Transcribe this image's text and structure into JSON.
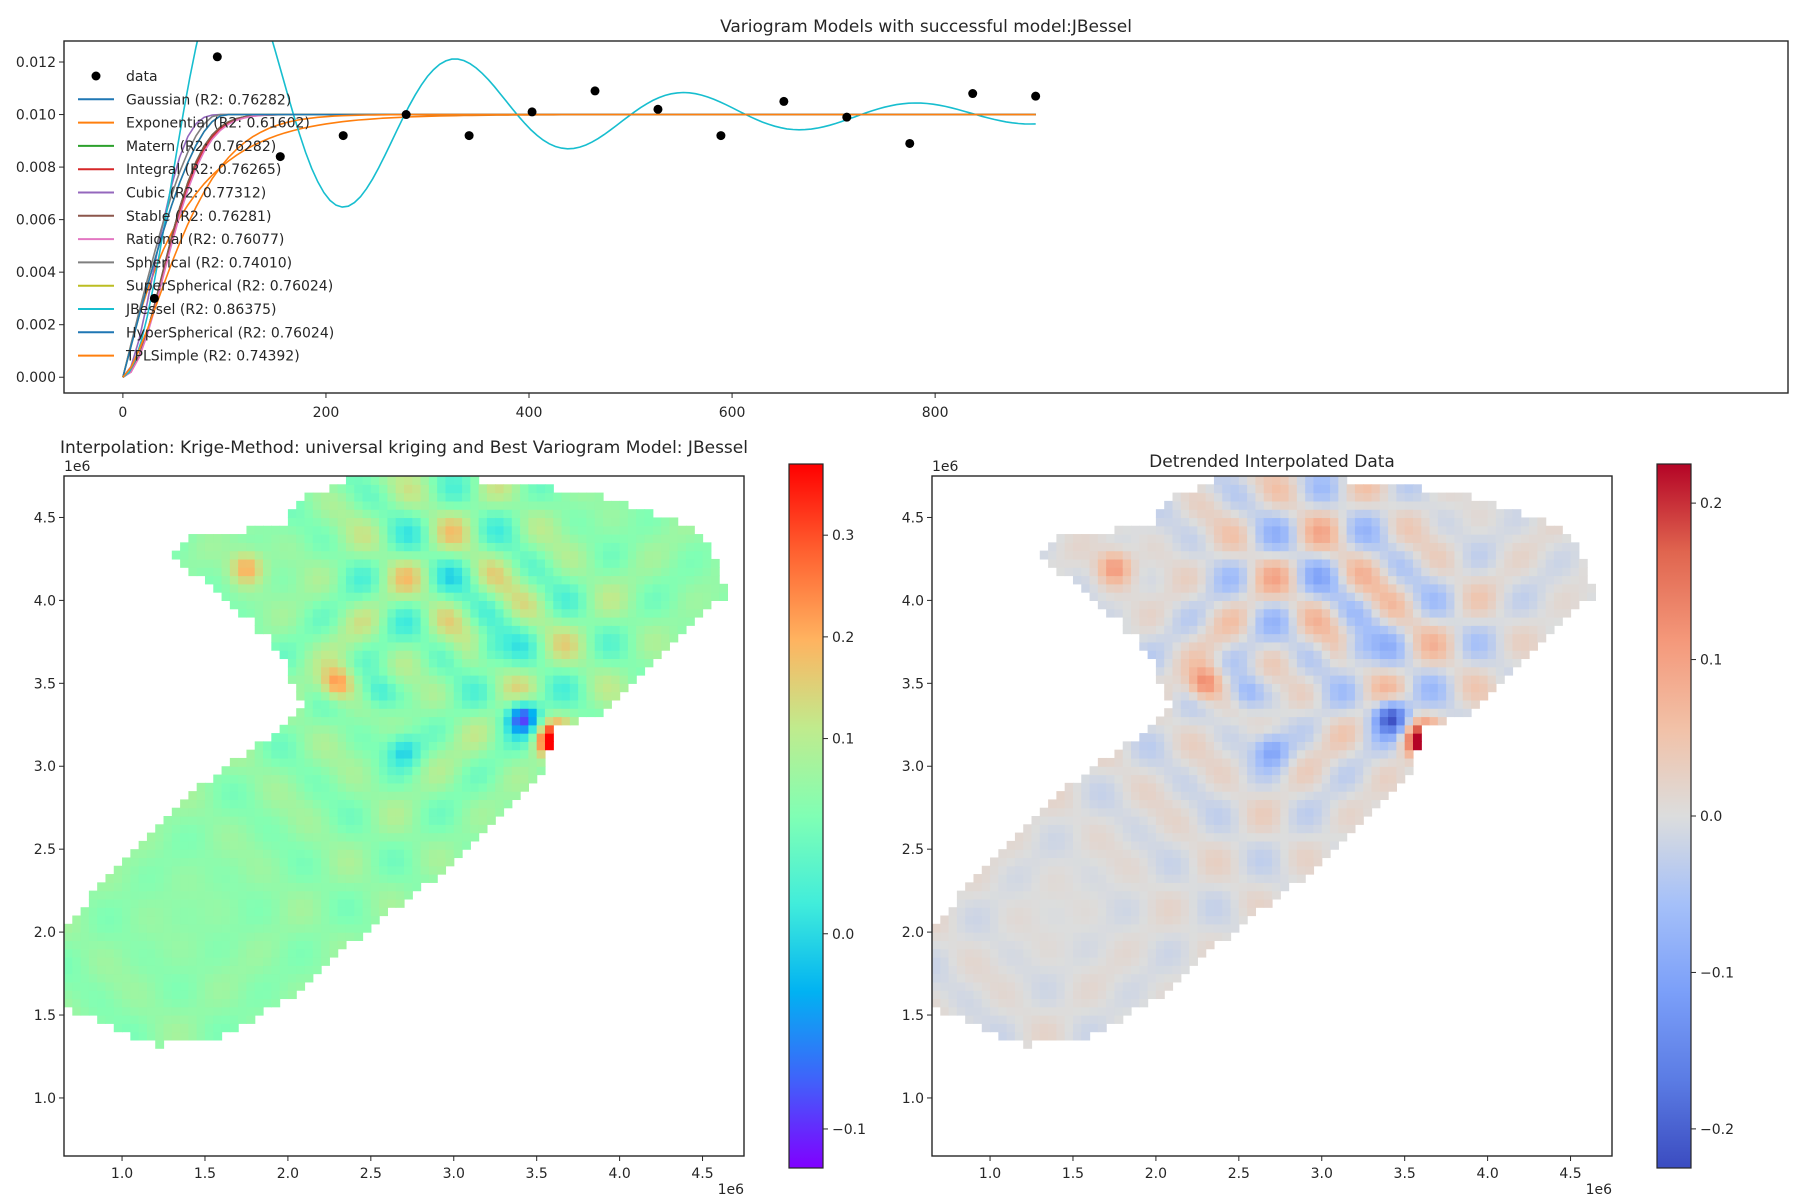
{
  "chart_data": [
    {
      "type": "scatter+line",
      "title": "Variogram Models with successful model:JBessel",
      "xlim": [
        -58,
        1640
      ],
      "ylim": [
        -0.0006,
        0.0128
      ],
      "xticks": [
        0,
        200,
        400,
        600,
        800
      ],
      "yticks": [
        0.0,
        0.002,
        0.004,
        0.006,
        0.008,
        0.01,
        0.012
      ],
      "ytick_labels": [
        "0.000",
        "0.002",
        "0.004",
        "0.006",
        "0.008",
        "0.010",
        "0.012"
      ],
      "grid": false,
      "legend_position": "upper-left",
      "points_label": "data",
      "points": {
        "x": [
          31,
          93,
          155,
          217,
          279,
          341,
          403,
          465,
          527,
          589,
          651,
          713,
          775,
          837,
          899
        ],
        "y": [
          0.003,
          0.0122,
          0.0084,
          0.0092,
          0.01,
          0.0092,
          0.0101,
          0.0109,
          0.0102,
          0.0092,
          0.0105,
          0.0099,
          0.0089,
          0.0108,
          0.0107
        ]
      },
      "series": [
        {
          "name": "Gaussian (R2: 0.76282)",
          "color": "#1f77b4",
          "model": "gaussian",
          "sill": 0.01,
          "range": 100
        },
        {
          "name": "Exponential (R2: 0.61602)",
          "color": "#ff7f0e",
          "model": "exponential",
          "sill": 0.01,
          "range": 60
        },
        {
          "name": "Matern (R2: 0.76282)",
          "color": "#2ca02c",
          "model": "gaussian",
          "sill": 0.01,
          "range": 100
        },
        {
          "name": "Integral (R2: 0.76265)",
          "color": "#d62728",
          "model": "gaussian",
          "sill": 0.01,
          "range": 102
        },
        {
          "name": "Cubic (R2: 0.77312)",
          "color": "#9467bd",
          "model": "cubic",
          "sill": 0.01,
          "range": 100
        },
        {
          "name": "Stable (R2: 0.76281)",
          "color": "#8c564b",
          "model": "gaussian",
          "sill": 0.01,
          "range": 100
        },
        {
          "name": "Rational (R2: 0.76077)",
          "color": "#e377c2",
          "model": "gaussian",
          "sill": 0.01,
          "range": 104
        },
        {
          "name": "Spherical (R2: 0.74010)",
          "color": "#7f7f7f",
          "model": "spherical",
          "sill": 0.01,
          "range": 95
        },
        {
          "name": "SuperSpherical (R2: 0.76024)",
          "color": "#bcbd22",
          "model": "spherical",
          "sill": 0.01,
          "range": 102
        },
        {
          "name": "JBessel (R2: 0.86375)",
          "color": "#17becf",
          "model": "jbessel",
          "sill": 0.01,
          "range": 100
        },
        {
          "name": "HyperSpherical (R2: 0.76024)",
          "color": "#1f77b4",
          "model": "spherical",
          "sill": 0.01,
          "range": 102
        },
        {
          "name": "TPLSimple (R2: 0.74392)",
          "color": "#ff7f0e",
          "model": "tpl",
          "sill": 0.01,
          "range": 70
        }
      ]
    },
    {
      "type": "heatmap",
      "title": "Interpolation: Krige-Method: universal kriging and Best Variogram Model: JBessel",
      "colormap": "rainbow",
      "xlim": [
        650000,
        4750000
      ],
      "ylim": [
        650000,
        4750000
      ],
      "xticks": [
        1.0,
        1.5,
        2.0,
        2.5,
        3.0,
        3.5,
        4.0,
        4.5
      ],
      "yticks": [
        1.0,
        1.5,
        2.0,
        2.5,
        3.0,
        3.5,
        4.0,
        4.5
      ],
      "tick_labels": [
        "1.0",
        "1.5",
        "2.0",
        "2.5",
        "3.0",
        "3.5",
        "4.0",
        "4.5"
      ],
      "x_offset_label": "1e6",
      "y_offset_label": "1e6",
      "colorbar_range": [
        -0.12,
        0.37
      ],
      "colorbar_ticks": [
        0.3,
        0.2,
        0.1,
        0.0,
        -0.1
      ],
      "colorbar_tick_labels": [
        "0.3",
        "0.2",
        "0.1",
        "0.0",
        "−0.1"
      ]
    },
    {
      "type": "heatmap",
      "title": "Detrended Interpolated Data",
      "colormap": "coolwarm",
      "xlim": [
        650000,
        4750000
      ],
      "ylim": [
        650000,
        4750000
      ],
      "xticks": [
        1.0,
        1.5,
        2.0,
        2.5,
        3.0,
        3.5,
        4.0,
        4.5
      ],
      "yticks": [
        1.0,
        1.5,
        2.0,
        2.5,
        3.0,
        3.5,
        4.0,
        4.5
      ],
      "tick_labels": [
        "1.0",
        "1.5",
        "2.0",
        "2.5",
        "3.0",
        "3.5",
        "4.0",
        "4.5"
      ],
      "x_offset_label": "1e6",
      "y_offset_label": "1e6",
      "colorbar_range": [
        -0.225,
        0.225
      ],
      "colorbar_ticks": [
        0.2,
        0.1,
        0.0,
        -0.1,
        -0.2
      ],
      "colorbar_tick_labels": [
        "0.2",
        "0.1",
        "0.0",
        "−0.1",
        "−0.2"
      ]
    }
  ]
}
